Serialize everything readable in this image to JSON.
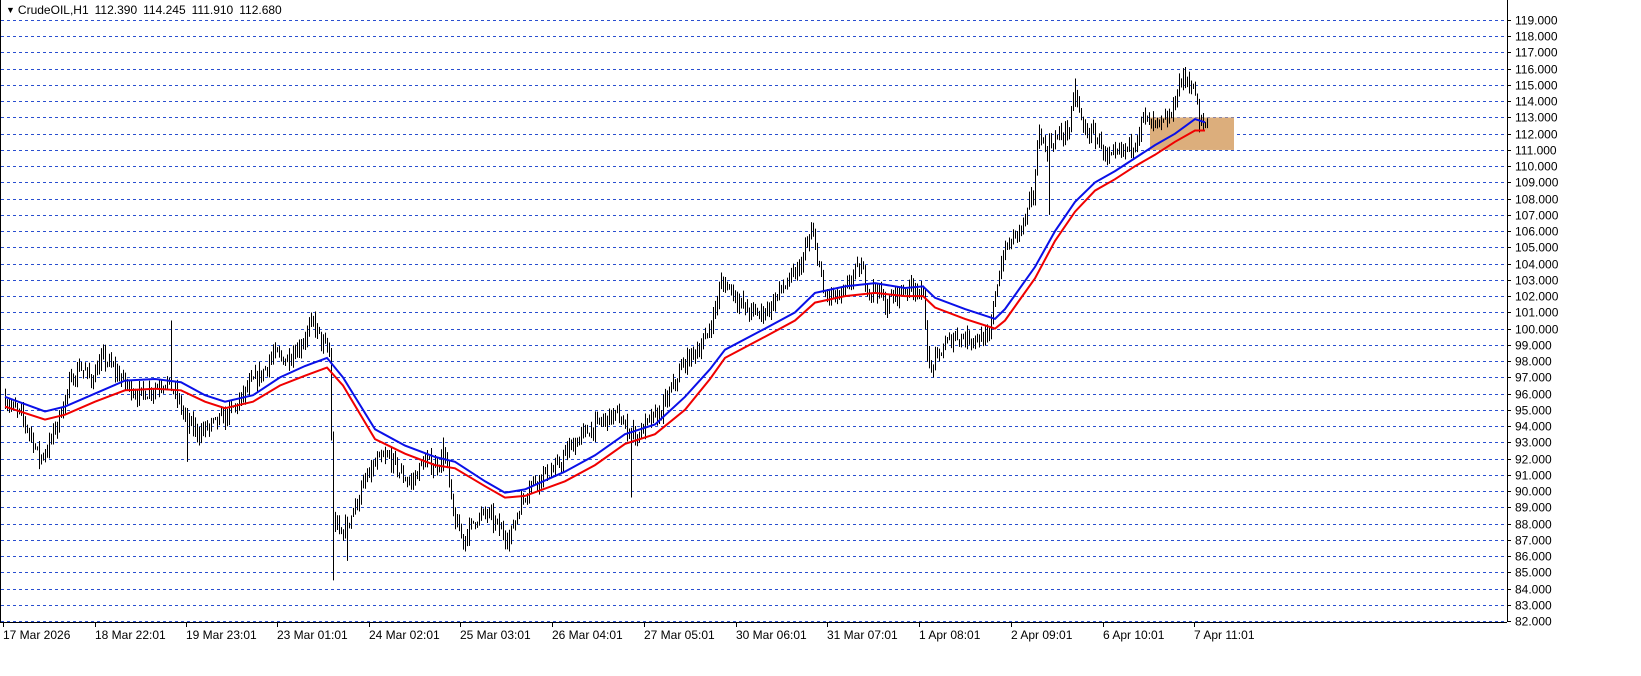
{
  "header": {
    "symbol": "CrudeOIL,H1",
    "open": "112.390",
    "high": "114.245",
    "low": "111.910",
    "close": "112.680",
    "menu_icon": "triangle-down-icon"
  },
  "colors": {
    "grid": "#2a4fd0",
    "candle": "#000000",
    "ma_fast": "#0a10e8",
    "ma_slow": "#f00000",
    "zone": "#dcae7c",
    "background": "#ffffff"
  },
  "chart_data": {
    "type": "candlestick",
    "symbol": "CrudeOIL",
    "timeframe": "H1",
    "y_ticks": [
      "119.000",
      "118.000",
      "117.000",
      "116.000",
      "115.000",
      "114.000",
      "113.000",
      "112.000",
      "111.000",
      "110.000",
      "109.000",
      "108.000",
      "107.000",
      "106.000",
      "105.000",
      "104.000",
      "103.000",
      "102.000",
      "101.000",
      "100.000",
      "99.000",
      "98.000",
      "97.000",
      "96.000",
      "95.000",
      "94.000",
      "93.000",
      "92.000",
      "91.000",
      "90.000",
      "89.000",
      "88.000",
      "87.000",
      "86.000",
      "85.000",
      "84.000",
      "83.000",
      "82.000"
    ],
    "ylim": [
      82,
      119
    ],
    "x_ticks": [
      "17 Mar 2026",
      "18 Mar 22:01",
      "19 Mar 23:01",
      "23 Mar 01:01",
      "24 Mar 02:01",
      "25 Mar 03:01",
      "26 Mar 04:01",
      "27 Mar 05:01",
      "30 Mar 06:01",
      "31 Mar 07:01",
      "1 Apr 08:01",
      "2 Apr 09:01",
      "6 Apr 10:01",
      "7 Apr 11:01"
    ],
    "grid": true,
    "price_path": [
      [
        0,
        95.8
      ],
      [
        10,
        95.1
      ],
      [
        18,
        94.6
      ],
      [
        28,
        93.4
      ],
      [
        36,
        92.0
      ],
      [
        44,
        92.6
      ],
      [
        54,
        94.2
      ],
      [
        66,
        96.5
      ],
      [
        76,
        97.7
      ],
      [
        88,
        96.9
      ],
      [
        100,
        98.2
      ],
      [
        112,
        97.4
      ],
      [
        124,
        96.5
      ],
      [
        136,
        95.9
      ],
      [
        150,
        96.3
      ],
      [
        162,
        96.8
      ],
      [
        172,
        96.0
      ],
      [
        184,
        94.2
      ],
      [
        196,
        93.6
      ],
      [
        210,
        94.1
      ],
      [
        222,
        94.6
      ],
      [
        234,
        95.3
      ],
      [
        246,
        96.5
      ],
      [
        258,
        97.2
      ],
      [
        270,
        98.4
      ],
      [
        282,
        98.1
      ],
      [
        296,
        98.9
      ],
      [
        310,
        100.4
      ],
      [
        318,
        99.2
      ],
      [
        326,
        98.5
      ],
      [
        330,
        88.2
      ],
      [
        338,
        87.4
      ],
      [
        350,
        88.8
      ],
      [
        362,
        90.6
      ],
      [
        374,
        91.8
      ],
      [
        386,
        92.1
      ],
      [
        398,
        91.0
      ],
      [
        408,
        90.5
      ],
      [
        420,
        91.8
      ],
      [
        432,
        91.6
      ],
      [
        442,
        92.2
      ],
      [
        450,
        88.4
      ],
      [
        460,
        87.0
      ],
      [
        472,
        88.3
      ],
      [
        484,
        88.6
      ],
      [
        496,
        87.7
      ],
      [
        506,
        87.1
      ],
      [
        516,
        89.0
      ],
      [
        526,
        90.4
      ],
      [
        540,
        91.0
      ],
      [
        552,
        91.3
      ],
      [
        566,
        92.6
      ],
      [
        578,
        93.4
      ],
      [
        592,
        94.0
      ],
      [
        604,
        94.5
      ],
      [
        614,
        94.7
      ],
      [
        622,
        93.9
      ],
      [
        634,
        93.4
      ],
      [
        646,
        94.3
      ],
      [
        656,
        94.7
      ],
      [
        668,
        96.2
      ],
      [
        680,
        97.8
      ],
      [
        692,
        98.6
      ],
      [
        702,
        99.3
      ],
      [
        710,
        100.8
      ],
      [
        718,
        102.8
      ],
      [
        728,
        102.5
      ],
      [
        736,
        101.6
      ],
      [
        744,
        101.1
      ],
      [
        756,
        100.9
      ],
      [
        768,
        101.4
      ],
      [
        776,
        102.3
      ],
      [
        786,
        102.9
      ],
      [
        796,
        103.7
      ],
      [
        808,
        105.9
      ],
      [
        814,
        104.6
      ],
      [
        820,
        102.1
      ],
      [
        832,
        101.9
      ],
      [
        840,
        102.0
      ],
      [
        850,
        103.4
      ],
      [
        858,
        103.7
      ],
      [
        866,
        102.3
      ],
      [
        874,
        102.5
      ],
      [
        882,
        101.4
      ],
      [
        892,
        102.1
      ],
      [
        904,
        102.5
      ],
      [
        914,
        102.6
      ],
      [
        920,
        101.8
      ],
      [
        926,
        97.4
      ],
      [
        932,
        98.0
      ],
      [
        942,
        99.0
      ],
      [
        952,
        99.6
      ],
      [
        964,
        99.4
      ],
      [
        974,
        99.5
      ],
      [
        986,
        99.3
      ],
      [
        992,
        102.3
      ],
      [
        1000,
        104.6
      ],
      [
        1010,
        105.6
      ],
      [
        1020,
        106.4
      ],
      [
        1030,
        108.3
      ],
      [
        1036,
        112.3
      ],
      [
        1042,
        111.0
      ],
      [
        1050,
        111.6
      ],
      [
        1058,
        111.9
      ],
      [
        1066,
        112.4
      ],
      [
        1072,
        114.4
      ],
      [
        1080,
        112.3
      ],
      [
        1090,
        111.9
      ],
      [
        1098,
        111.4
      ],
      [
        1104,
        110.3
      ],
      [
        1112,
        110.6
      ],
      [
        1122,
        111.0
      ],
      [
        1132,
        111.6
      ],
      [
        1140,
        113.0
      ],
      [
        1148,
        112.5
      ],
      [
        1158,
        112.5
      ],
      [
        1168,
        113.1
      ],
      [
        1176,
        115.2
      ],
      [
        1184,
        115.4
      ],
      [
        1192,
        114.5
      ],
      [
        1196,
        112.5
      ],
      [
        1202,
        112.7
      ]
    ],
    "wick_spikes": [
      [
        328,
        84.5
      ],
      [
        342,
        85.7
      ],
      [
        166,
        100.5
      ],
      [
        626,
        89.6
      ],
      [
        1044,
        107.0
      ],
      [
        1070,
        115.4
      ],
      [
        182,
        92.0
      ],
      [
        438,
        93.3
      ],
      [
        183,
        91.8
      ]
    ],
    "ma_fast": [
      [
        0,
        95.8
      ],
      [
        40,
        94.9
      ],
      [
        60,
        95.2
      ],
      [
        90,
        96.0
      ],
      [
        120,
        96.8
      ],
      [
        150,
        96.9
      ],
      [
        176,
        96.7
      ],
      [
        200,
        95.9
      ],
      [
        220,
        95.5
      ],
      [
        248,
        95.9
      ],
      [
        275,
        97.0
      ],
      [
        300,
        97.7
      ],
      [
        322,
        98.2
      ],
      [
        338,
        97.0
      ],
      [
        370,
        93.8
      ],
      [
        400,
        92.8
      ],
      [
        430,
        92.1
      ],
      [
        450,
        91.8
      ],
      [
        480,
        90.6
      ],
      [
        500,
        89.9
      ],
      [
        520,
        90.1
      ],
      [
        560,
        91.2
      ],
      [
        590,
        92.2
      ],
      [
        620,
        93.5
      ],
      [
        650,
        94.1
      ],
      [
        680,
        95.8
      ],
      [
        705,
        97.5
      ],
      [
        720,
        98.7
      ],
      [
        760,
        100.0
      ],
      [
        790,
        101.0
      ],
      [
        810,
        102.2
      ],
      [
        840,
        102.6
      ],
      [
        870,
        102.8
      ],
      [
        900,
        102.5
      ],
      [
        918,
        102.6
      ],
      [
        930,
        101.9
      ],
      [
        960,
        101.2
      ],
      [
        990,
        100.6
      ],
      [
        1000,
        101.2
      ],
      [
        1030,
        103.8
      ],
      [
        1050,
        106.0
      ],
      [
        1070,
        107.8
      ],
      [
        1090,
        109.0
      ],
      [
        1110,
        109.7
      ],
      [
        1130,
        110.5
      ],
      [
        1150,
        111.3
      ],
      [
        1170,
        112.0
      ],
      [
        1190,
        112.9
      ],
      [
        1200,
        112.7
      ]
    ],
    "ma_slow": [
      [
        0,
        95.2
      ],
      [
        40,
        94.4
      ],
      [
        60,
        94.7
      ],
      [
        90,
        95.5
      ],
      [
        120,
        96.2
      ],
      [
        150,
        96.3
      ],
      [
        176,
        96.2
      ],
      [
        200,
        95.5
      ],
      [
        220,
        95.1
      ],
      [
        248,
        95.5
      ],
      [
        275,
        96.5
      ],
      [
        300,
        97.1
      ],
      [
        322,
        97.6
      ],
      [
        338,
        96.5
      ],
      [
        370,
        93.2
      ],
      [
        400,
        92.3
      ],
      [
        430,
        91.6
      ],
      [
        450,
        91.4
      ],
      [
        480,
        90.3
      ],
      [
        500,
        89.6
      ],
      [
        520,
        89.7
      ],
      [
        560,
        90.6
      ],
      [
        590,
        91.6
      ],
      [
        620,
        92.9
      ],
      [
        650,
        93.5
      ],
      [
        680,
        95.0
      ],
      [
        705,
        96.9
      ],
      [
        720,
        98.2
      ],
      [
        760,
        99.5
      ],
      [
        790,
        100.5
      ],
      [
        810,
        101.6
      ],
      [
        840,
        102.0
      ],
      [
        870,
        102.2
      ],
      [
        900,
        102.0
      ],
      [
        918,
        102.0
      ],
      [
        930,
        101.3
      ],
      [
        960,
        100.6
      ],
      [
        990,
        100.0
      ],
      [
        1000,
        100.5
      ],
      [
        1030,
        103.1
      ],
      [
        1050,
        105.4
      ],
      [
        1070,
        107.2
      ],
      [
        1090,
        108.5
      ],
      [
        1110,
        109.2
      ],
      [
        1130,
        110.0
      ],
      [
        1150,
        110.7
      ],
      [
        1170,
        111.5
      ],
      [
        1190,
        112.2
      ],
      [
        1200,
        112.2
      ]
    ],
    "zone": {
      "y_low": 111.0,
      "y_high": 113.0
    }
  }
}
